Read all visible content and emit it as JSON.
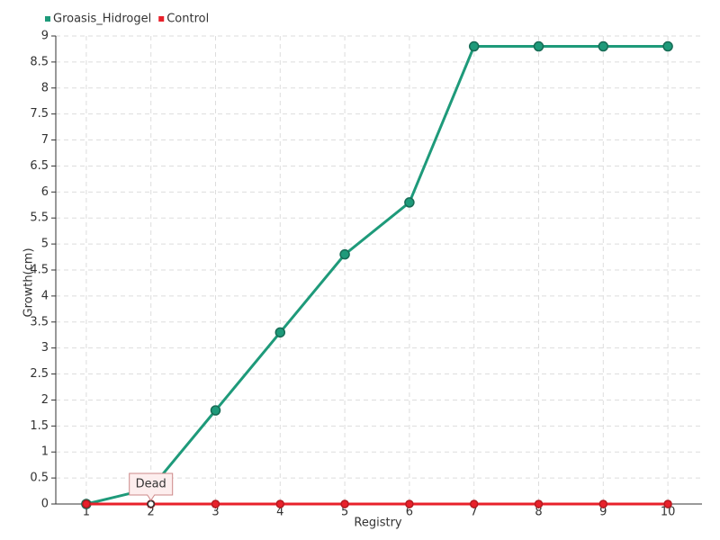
{
  "chart_data": {
    "type": "line",
    "x_label": "Registry",
    "y_label": "Growth(cm)",
    "categories": [
      "1",
      "2",
      "3",
      "4",
      "5",
      "6",
      "7",
      "8",
      "9",
      "10"
    ],
    "series": [
      {
        "name": "Groasis_Hidrogel",
        "color": "#1e9a7a",
        "values": [
          0,
          0.3,
          1.8,
          3.3,
          4.8,
          5.8,
          8.8,
          8.8,
          8.8,
          8.8
        ]
      },
      {
        "name": "Control",
        "color": "#e8202a",
        "values": [
          0,
          0,
          0,
          0,
          0,
          0,
          0,
          0,
          0,
          0
        ]
      }
    ],
    "annotations": [
      {
        "text": "Dead",
        "x": "2"
      }
    ],
    "ylim": [
      0,
      9
    ],
    "yticks": [
      0,
      0.5,
      1,
      1.5,
      2,
      2.5,
      3,
      3.5,
      4,
      4.5,
      5,
      5.5,
      6,
      6.5,
      7,
      7.5,
      8,
      8.5,
      9
    ],
    "grid": true,
    "legend": "top-left"
  }
}
